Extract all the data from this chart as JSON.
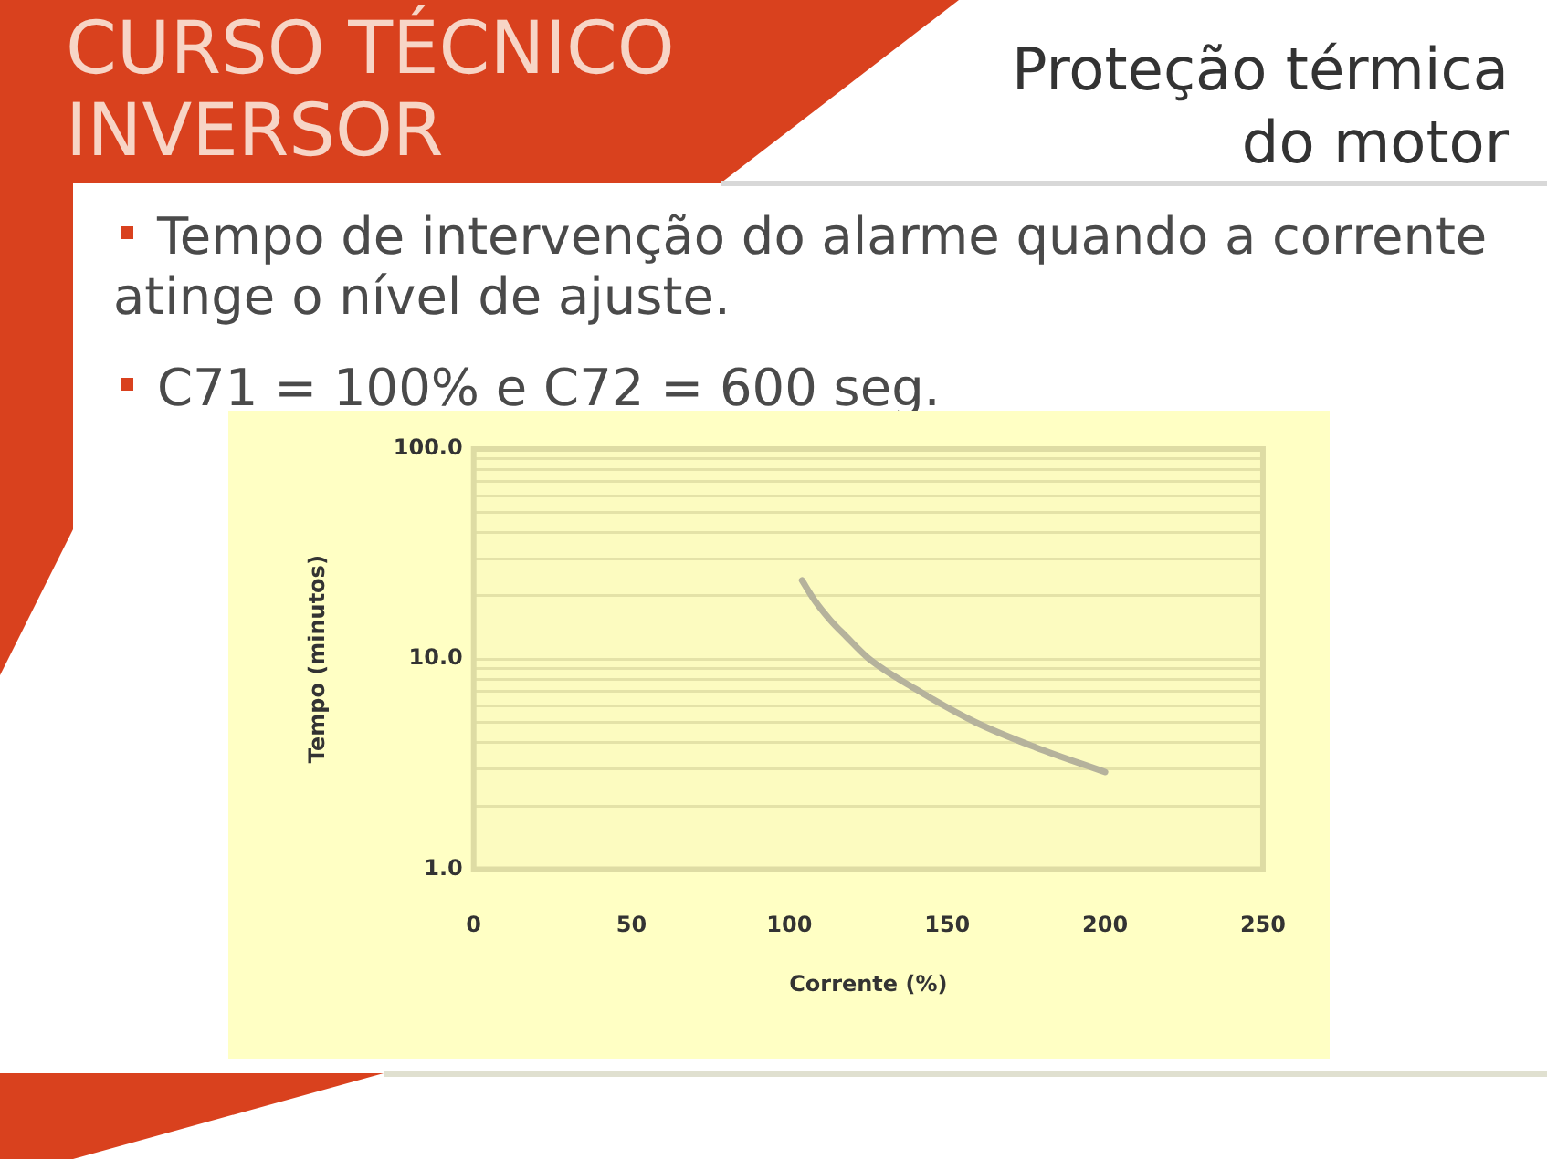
{
  "chart_data": {
    "type": "line",
    "title": "Proteção térmica do motor",
    "subtitle": "CURSO TÉCNICO INVERSOR",
    "annotations": [
      "Tempo de intervenção do alarme quando a corrente atinge o nível de ajuste.",
      "C71 = 100% e C72 = 600 seg."
    ],
    "xlabel": "Corrente (%)",
    "ylabel": "Tempo (minutos)",
    "x": [
      104,
      108,
      113,
      118,
      125,
      140,
      159,
      178,
      200
    ],
    "series": [
      {
        "color": "#b5b29c",
        "values": [
          23.7,
          19,
          15.3,
          12.8,
          10.1,
          7.2,
          5,
          3.8,
          2.9
        ]
      }
    ],
    "xlim": [
      0,
      250
    ],
    "xticks": [
      0,
      50,
      100,
      150,
      200,
      250
    ],
    "ylim": [
      1,
      100
    ],
    "yticks": [
      {
        "value": 1,
        "label": "1.0"
      },
      {
        "value": 2,
        "label": null
      },
      {
        "value": 3,
        "label": null
      },
      {
        "value": 4,
        "label": null
      },
      {
        "value": 5,
        "label": null
      },
      {
        "value": 6,
        "label": null
      },
      {
        "value": 7,
        "label": null
      },
      {
        "value": 8,
        "label": null
      },
      {
        "value": 9,
        "label": null
      },
      {
        "value": 10,
        "label": "10.0"
      },
      {
        "value": 20,
        "label": null
      },
      {
        "value": 30,
        "label": null
      },
      {
        "value": 40,
        "label": null
      },
      {
        "value": 50,
        "label": null
      },
      {
        "value": 60,
        "label": null
      },
      {
        "value": 70,
        "label": null
      },
      {
        "value": 80,
        "label": null
      },
      {
        "value": 90,
        "label": null
      },
      {
        "value": 100,
        "label": "100.0"
      }
    ],
    "log": "y",
    "grid": "y",
    "marker": "none"
  }
}
